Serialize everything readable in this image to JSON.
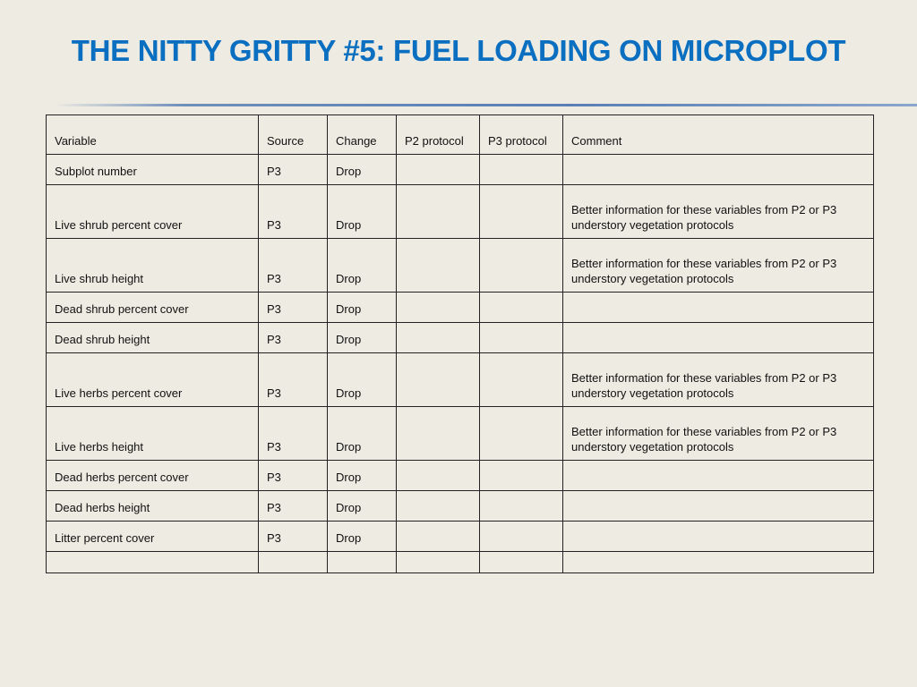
{
  "title": "THE NITTY GRITTY #5: FUEL LOADING ON MICROPLOT",
  "colors": {
    "title": "#0a6fc0",
    "background": "#eeebe2"
  },
  "table": {
    "headers": [
      "Variable",
      "Source",
      "Change",
      "P2 protocol",
      "P3 protocol",
      "Comment"
    ],
    "rows": [
      [
        "Subplot number",
        "P3",
        "Drop",
        "",
        "",
        ""
      ],
      [
        "Live shrub percent cover",
        "P3",
        "Drop",
        "",
        "",
        "Better information for these variables from P2 or P3 understory vegetation protocols"
      ],
      [
        "Live shrub height",
        "P3",
        "Drop",
        "",
        "",
        "Better information for these variables from P2 or P3 understory vegetation protocols"
      ],
      [
        "Dead shrub percent cover",
        "P3",
        "Drop",
        "",
        "",
        ""
      ],
      [
        "Dead shrub height",
        "P3",
        "Drop",
        "",
        "",
        ""
      ],
      [
        "Live herbs percent cover",
        "P3",
        "Drop",
        "",
        "",
        "Better information for these variables from P2 or P3 understory vegetation protocols"
      ],
      [
        "Live herbs height",
        "P3",
        "Drop",
        "",
        "",
        "Better information for these variables from P2 or P3 understory vegetation protocols"
      ],
      [
        "Dead herbs percent cover",
        "P3",
        "Drop",
        "",
        "",
        ""
      ],
      [
        "Dead herbs height",
        "P3",
        "Drop",
        "",
        "",
        ""
      ],
      [
        "Litter percent cover",
        "P3",
        "Drop",
        "",
        "",
        ""
      ],
      [
        "",
        "",
        "",
        "",
        "",
        ""
      ]
    ]
  }
}
